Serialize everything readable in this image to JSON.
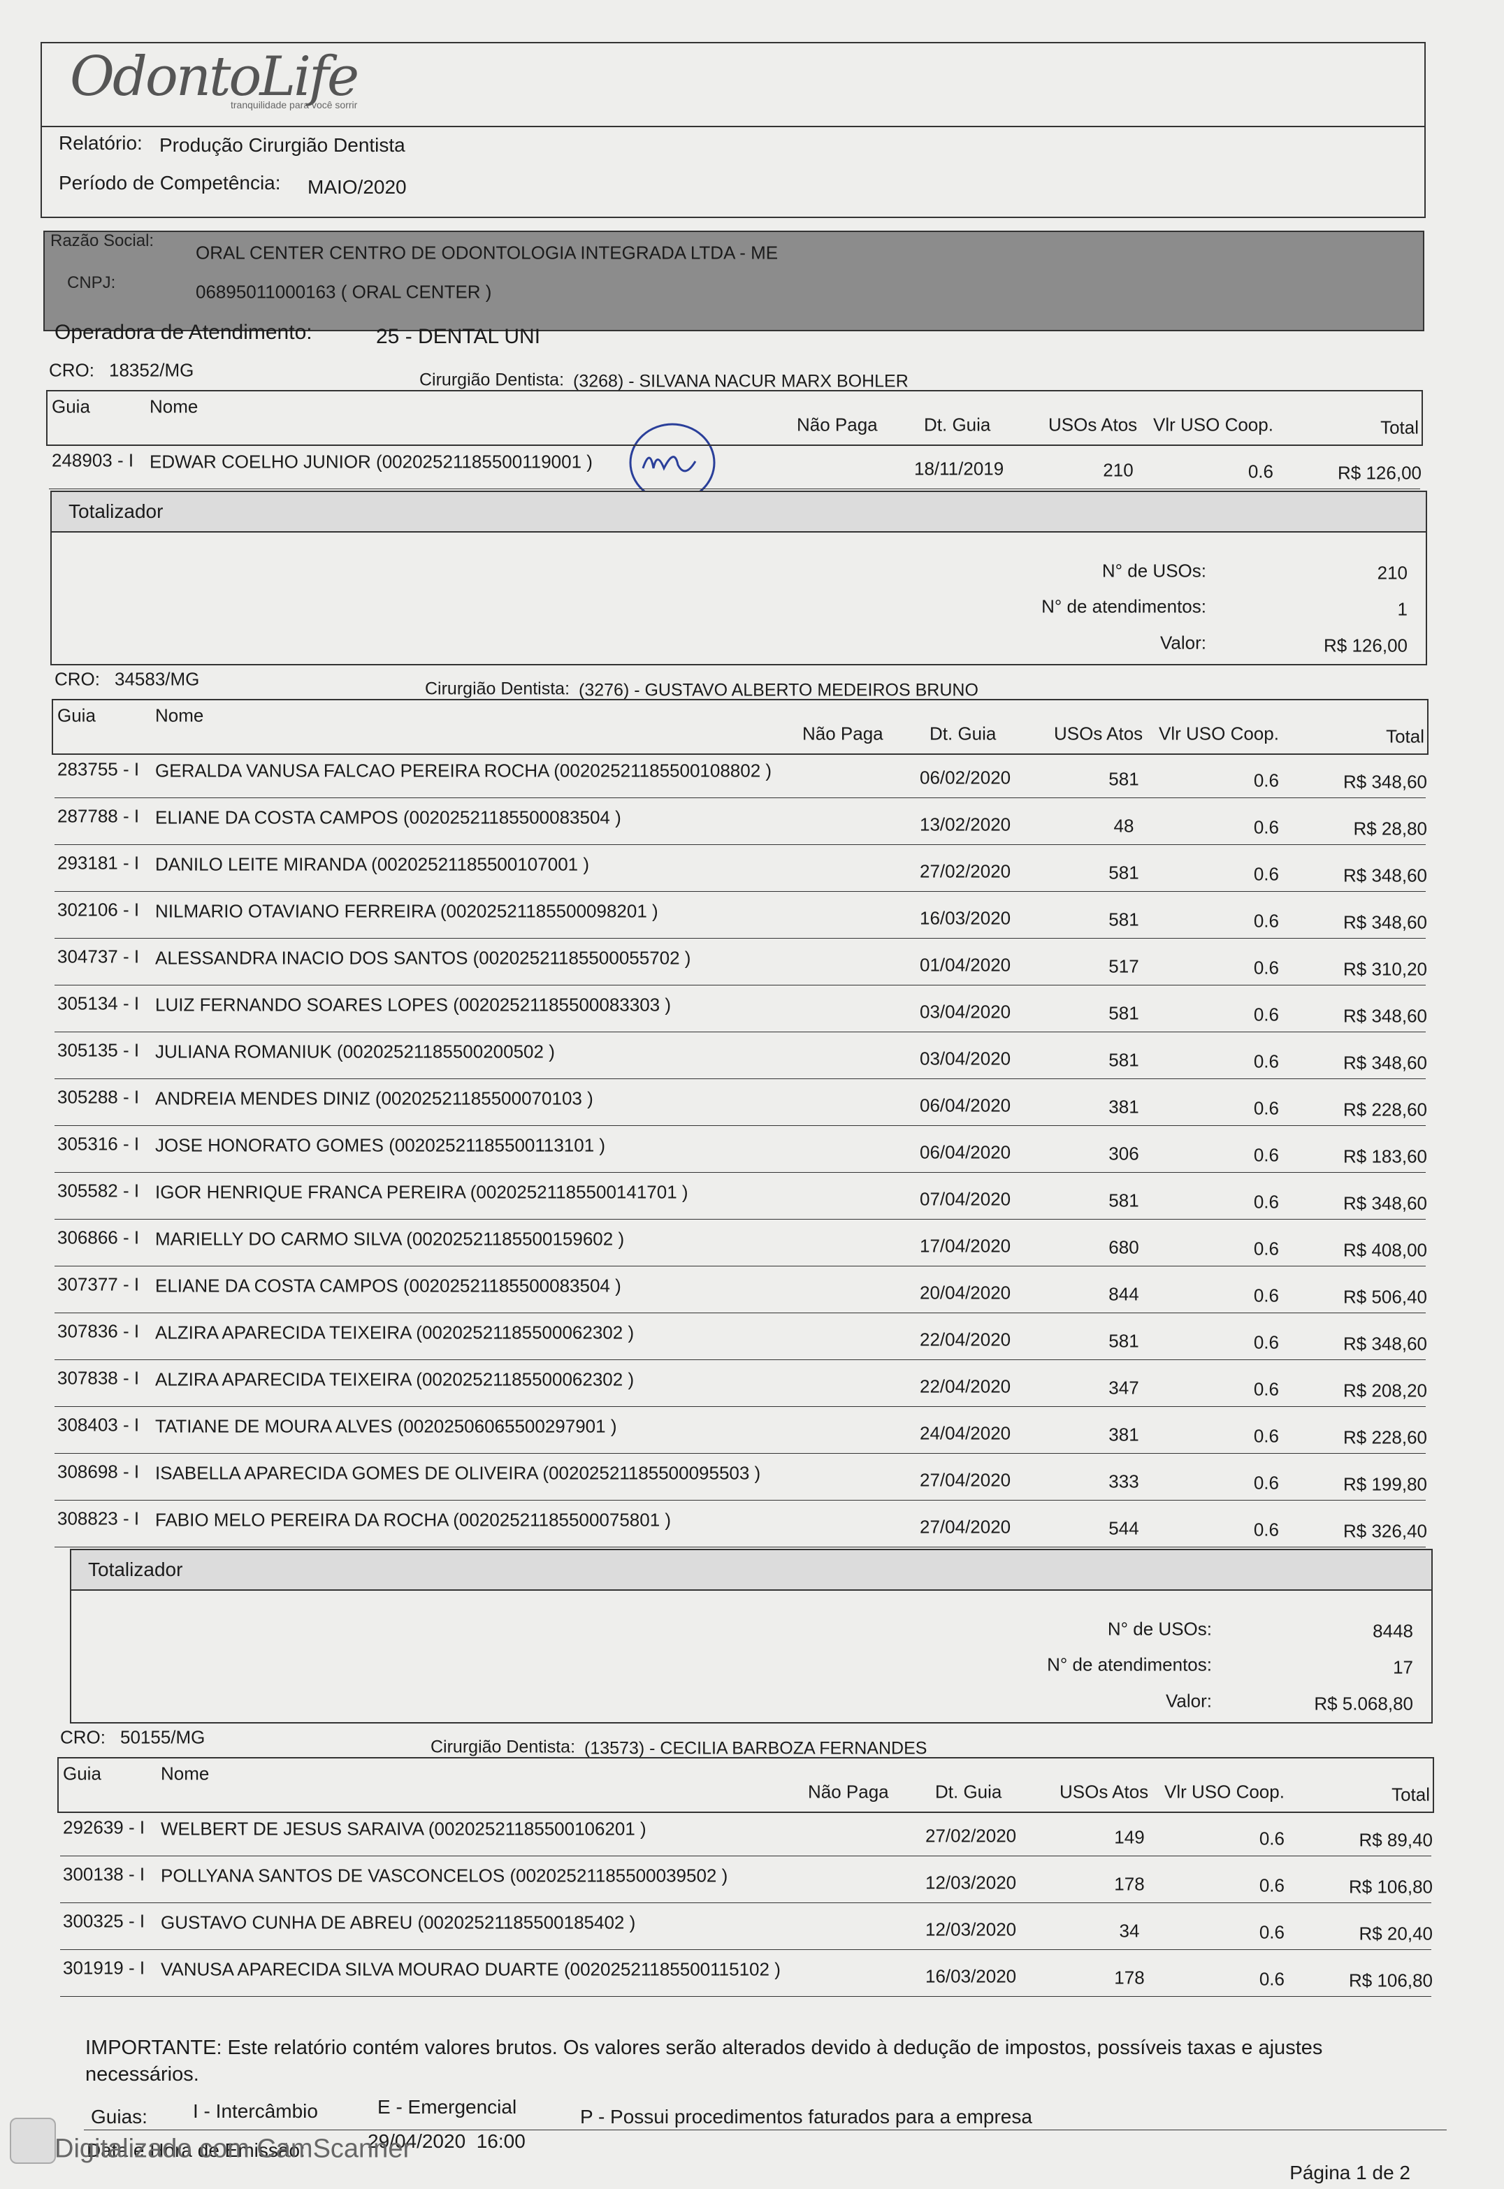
{
  "header": {
    "logo": "OdontoLife",
    "tagline": "tranquilidade para você sorrir",
    "report_label": "Relatório:",
    "report": "Produção Cirurgião Dentista",
    "period_label": "Período de Competência:",
    "period": "MAIO/2020"
  },
  "company": {
    "razao_label": "Razão Social:",
    "razao": "ORAL CENTER CENTRO DE ODONTOLOGIA INTEGRADA LTDA - ME",
    "cnpj_label": "CNPJ:",
    "cnpj": "06895011000163 ( ORAL CENTER )"
  },
  "operadora_label": "Operadora de Atendimento:",
  "operadora": "25 - DENTAL UNI",
  "columns": [
    "Guia",
    "Nome",
    "Não Paga",
    "Dt. Guia",
    "USOs Atos",
    "Vlr USO Coop.",
    "Total"
  ],
  "totalizer_labels": {
    "title": "Totalizador",
    "usos": "N° de USOs:",
    "atendimentos": "N° de atendimentos:",
    "valor": "Valor:"
  },
  "sections": [
    {
      "cro_label": "CRO:",
      "cro": "18352/MG",
      "dentist_label": "Cirurgião Dentista:",
      "dentist": "(3268) - SILVANA NACUR MARX BOHLER",
      "rows": [
        [
          "248903 - I",
          "EDWAR COELHO JUNIOR (00202521185500119001 )",
          "18/11/2019",
          "210",
          "0.6",
          "R$ 126,00"
        ]
      ],
      "totalizer": {
        "usos": "210",
        "atendimentos": "1",
        "valor": "R$ 126,00"
      }
    },
    {
      "cro_label": "CRO:",
      "cro": "34583/MG",
      "dentist_label": "Cirurgião Dentista:",
      "dentist": "(3276) - GUSTAVO ALBERTO MEDEIROS BRUNO",
      "rows": [
        [
          "283755 - I",
          "GERALDA VANUSA FALCAO PEREIRA ROCHA (00202521185500108802 )",
          "06/02/2020",
          "581",
          "0.6",
          "R$ 348,60"
        ],
        [
          "287788 - I",
          "ELIANE DA COSTA CAMPOS (00202521185500083504 )",
          "13/02/2020",
          "48",
          "0.6",
          "R$ 28,80"
        ],
        [
          "293181 - I",
          "DANILO LEITE MIRANDA (00202521185500107001 )",
          "27/02/2020",
          "581",
          "0.6",
          "R$ 348,60"
        ],
        [
          "302106 - I",
          "NILMARIO OTAVIANO FERREIRA (00202521185500098201 )",
          "16/03/2020",
          "581",
          "0.6",
          "R$ 348,60"
        ],
        [
          "304737 - I",
          "ALESSANDRA INACIO DOS SANTOS (00202521185500055702 )",
          "01/04/2020",
          "517",
          "0.6",
          "R$ 310,20"
        ],
        [
          "305134 - I",
          "LUIZ FERNANDO SOARES LOPES (00202521185500083303 )",
          "03/04/2020",
          "581",
          "0.6",
          "R$ 348,60"
        ],
        [
          "305135 - I",
          "JULIANA ROMANIUK (00202521185500200502 )",
          "03/04/2020",
          "581",
          "0.6",
          "R$ 348,60"
        ],
        [
          "305288 - I",
          "ANDREIA MENDES DINIZ (00202521185500070103 )",
          "06/04/2020",
          "381",
          "0.6",
          "R$ 228,60"
        ],
        [
          "305316 - I",
          "JOSE HONORATO GOMES (00202521185500113101 )",
          "06/04/2020",
          "306",
          "0.6",
          "R$ 183,60"
        ],
        [
          "305582 - I",
          "IGOR HENRIQUE FRANCA PEREIRA (00202521185500141701 )",
          "07/04/2020",
          "581",
          "0.6",
          "R$ 348,60"
        ],
        [
          "306866 - I",
          "MARIELLY DO CARMO SILVA (00202521185500159602 )",
          "17/04/2020",
          "680",
          "0.6",
          "R$ 408,00"
        ],
        [
          "307377 - I",
          "ELIANE DA COSTA CAMPOS (00202521185500083504 )",
          "20/04/2020",
          "844",
          "0.6",
          "R$ 506,40"
        ],
        [
          "307836 - I",
          "ALZIRA APARECIDA TEIXEIRA (00202521185500062302 )",
          "22/04/2020",
          "581",
          "0.6",
          "R$ 348,60"
        ],
        [
          "307838 - I",
          "ALZIRA APARECIDA TEIXEIRA (00202521185500062302 )",
          "22/04/2020",
          "347",
          "0.6",
          "R$ 208,20"
        ],
        [
          "308403 - I",
          "TATIANE DE MOURA ALVES (00202506065500297901 )",
          "24/04/2020",
          "381",
          "0.6",
          "R$ 228,60"
        ],
        [
          "308698 - I",
          "ISABELLA APARECIDA GOMES DE OLIVEIRA (00202521185500095503 )",
          "27/04/2020",
          "333",
          "0.6",
          "R$ 199,80"
        ],
        [
          "308823 - I",
          "FABIO MELO PEREIRA DA ROCHA (00202521185500075801 )",
          "27/04/2020",
          "544",
          "0.6",
          "R$ 326,40"
        ]
      ],
      "totalizer": {
        "usos": "8448",
        "atendimentos": "17",
        "valor": "R$ 5.068,80"
      }
    },
    {
      "cro_label": "CRO:",
      "cro": "50155/MG",
      "dentist_label": "Cirurgião Dentista:",
      "dentist": "(13573) - CECILIA BARBOZA FERNANDES",
      "rows": [
        [
          "292639 - I",
          "WELBERT DE JESUS SARAIVA (00202521185500106201 )",
          "27/02/2020",
          "149",
          "0.6",
          "R$ 89,40"
        ],
        [
          "300138 - I",
          "POLLYANA SANTOS DE VASCONCELOS (00202521185500039502 )",
          "12/03/2020",
          "178",
          "0.6",
          "R$ 106,80"
        ],
        [
          "300325 - I",
          "GUSTAVO CUNHA DE ABREU (00202521185500185402 )",
          "12/03/2020",
          "34",
          "0.6",
          "R$ 20,40"
        ],
        [
          "301919 - I",
          "VANUSA APARECIDA SILVA MOURAO DUARTE (00202521185500115102 )",
          "16/03/2020",
          "178",
          "0.6",
          "R$ 106,80"
        ]
      ]
    }
  ],
  "footer": {
    "important": "IMPORTANTE: Este relatório contém valores brutos. Os valores serão alterados devido à dedução de impostos, possíveis taxas e ajustes necessários.",
    "guias_label": "Guias:",
    "guia_i": "I - Intercâmbio",
    "guia_e": "E - Emergencial",
    "guia_p": "P - Possui procedimentos faturados para a empresa",
    "emissao_label": "Data e Hora de Emissão:",
    "emissao": "29/04/2020  16:00",
    "page": "Página 1 de 2",
    "scanner": "Digitalizado com CamScanner"
  }
}
